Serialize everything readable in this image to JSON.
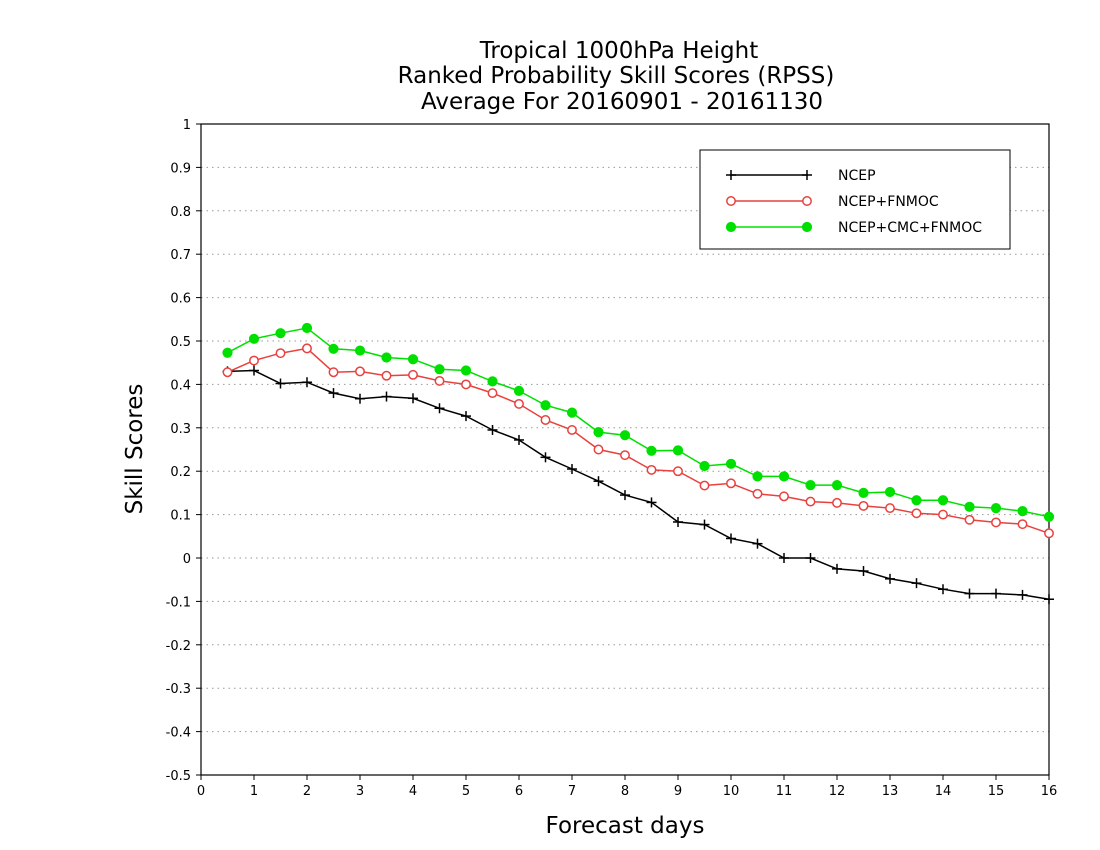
{
  "chart_data": {
    "type": "line",
    "title_lines": [
      "Tropical 1000hPa Height",
      "Ranked Probability Skill Scores (RPSS)",
      "Average For 20160901 - 20161130"
    ],
    "xlabel": "Forecast days",
    "ylabel": "Skill Scores",
    "xlim": [
      0,
      16
    ],
    "ylim": [
      -0.5,
      1
    ],
    "xticks": [
      "0",
      "1",
      "2",
      "3",
      "4",
      "5",
      "6",
      "7",
      "8",
      "9",
      "10",
      "11",
      "12",
      "13",
      "14",
      "15",
      "16"
    ],
    "yticks": [
      "-0.5",
      "-0.4",
      "-0.3",
      "-0.2",
      "-0.1",
      "0",
      "0.1",
      "0.2",
      "0.3",
      "0.4",
      "0.5",
      "0.6",
      "0.7",
      "0.8",
      "0.9",
      "1"
    ],
    "grid": true,
    "legend_position": "top-right",
    "x": [
      0.5,
      1,
      1.5,
      2,
      2.5,
      3,
      3.5,
      4,
      4.5,
      5,
      5.5,
      6,
      6.5,
      7,
      7.5,
      8,
      8.5,
      9,
      9.5,
      10,
      10.5,
      11,
      11.5,
      12,
      12.5,
      13,
      13.5,
      14,
      14.5,
      15,
      15.5,
      16
    ],
    "series": [
      {
        "name": "NCEP",
        "color": "#000000",
        "marker": "plus",
        "values": [
          0.43,
          0.432,
          0.402,
          0.405,
          0.38,
          0.367,
          0.372,
          0.368,
          0.345,
          0.327,
          0.295,
          0.272,
          0.232,
          0.205,
          0.177,
          0.145,
          0.128,
          0.083,
          0.077,
          0.045,
          0.033,
          0.0,
          0.0,
          -0.025,
          -0.03,
          -0.048,
          -0.058,
          -0.072,
          -0.082,
          -0.082,
          -0.085,
          -0.095
        ]
      },
      {
        "name": "NCEP+FNMOC",
        "color": "#e8413e",
        "marker": "open-circle",
        "values": [
          0.428,
          0.455,
          0.472,
          0.483,
          0.428,
          0.43,
          0.42,
          0.422,
          0.408,
          0.4,
          0.38,
          0.355,
          0.318,
          0.295,
          0.25,
          0.237,
          0.203,
          0.2,
          0.167,
          0.172,
          0.148,
          0.142,
          0.13,
          0.127,
          0.12,
          0.115,
          0.103,
          0.1,
          0.088,
          0.082,
          0.078,
          0.057
        ]
      },
      {
        "name": "NCEP+CMC+FNMOC",
        "color": "#00e000",
        "marker": "filled-circle",
        "values": [
          0.473,
          0.505,
          0.518,
          0.53,
          0.482,
          0.478,
          0.462,
          0.458,
          0.435,
          0.432,
          0.407,
          0.385,
          0.352,
          0.335,
          0.29,
          0.283,
          0.247,
          0.248,
          0.212,
          0.217,
          0.188,
          0.188,
          0.168,
          0.168,
          0.15,
          0.152,
          0.133,
          0.133,
          0.118,
          0.115,
          0.108,
          0.095
        ]
      }
    ]
  }
}
